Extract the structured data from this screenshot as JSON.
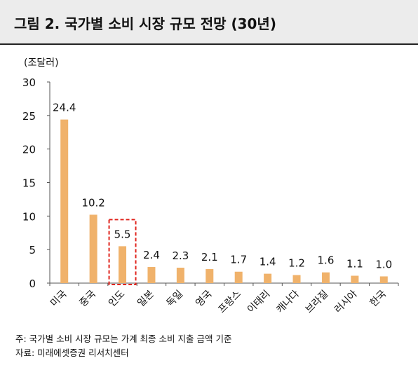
{
  "title": "그림 2. 국가별 소비 시장 규모 전망 (30년)",
  "notes": {
    "note": "주: 국가별 소비 시장 규모는 가계 최종 소비 지출 금액 기준",
    "source": "자료: 미래에셋증권 리서치센터"
  },
  "chart_data": {
    "type": "bar",
    "unit_label": "(조달러)",
    "categories": [
      "미국",
      "중국",
      "인도",
      "일본",
      "독일",
      "영국",
      "프랑스",
      "이태리",
      "캐나다",
      "브라질",
      "러시아",
      "한국"
    ],
    "values": [
      24.4,
      10.2,
      5.5,
      2.4,
      2.3,
      2.1,
      1.7,
      1.4,
      1.2,
      1.6,
      1.1,
      1.0
    ],
    "data_labels": [
      "24.4",
      "10.2",
      "5.5",
      "2.4",
      "2.3",
      "2.1",
      "1.7",
      "1.4",
      "1.2",
      "1.6",
      "1.1",
      "1.0"
    ],
    "ylim": [
      0,
      30
    ],
    "yticks": [
      0,
      5,
      10,
      15,
      20,
      25,
      30
    ],
    "bar_color": "#f0b26b",
    "highlight": {
      "category": "인도",
      "color": "#e0231c",
      "style": "dashed-box"
    },
    "grid": false,
    "legend": "none"
  }
}
